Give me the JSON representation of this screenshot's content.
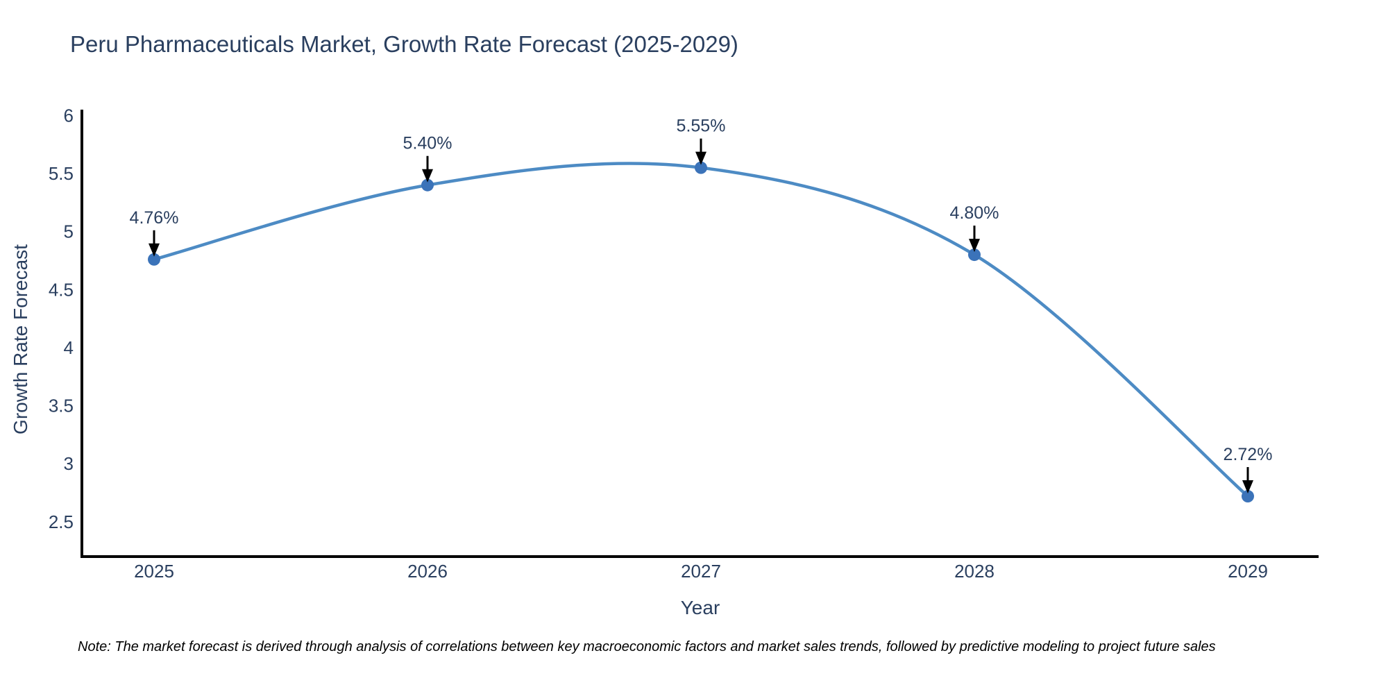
{
  "title": "Peru Pharmaceuticals Market, Growth Rate Forecast (2025-2029)",
  "note": "Note: The market forecast is derived through analysis of correlations between key macroeconomic factors and market sales trends, followed by predictive modeling to project future sales",
  "chart_data": {
    "type": "line",
    "line_shape": "spline",
    "categories": [
      "2025",
      "2026",
      "2027",
      "2028",
      "2029"
    ],
    "values": [
      4.76,
      5.4,
      5.55,
      4.8,
      2.72
    ],
    "point_labels": [
      "4.76%",
      "5.40%",
      "5.55%",
      "4.80%",
      "2.72%"
    ],
    "title": "Peru Pharmaceuticals Market, Growth Rate Forecast (2025-2029)",
    "xlabel": "Year",
    "ylabel": "Growth Rate Forecast",
    "ylim": [
      2.2,
      6.05
    ],
    "yticks": [
      6,
      5.5,
      5,
      4.5,
      4,
      3.5,
      3,
      2.5
    ],
    "grid": "off",
    "legend": "none",
    "annotations": "arrow-down-to-point",
    "colors": {
      "line": "#4d8bc4",
      "marker": "#3b73b9",
      "axis": "#000000",
      "text": "#2a3f5f",
      "annotation_arrow": "#000000",
      "note_text": "#000000",
      "background": "#ffffff"
    }
  }
}
